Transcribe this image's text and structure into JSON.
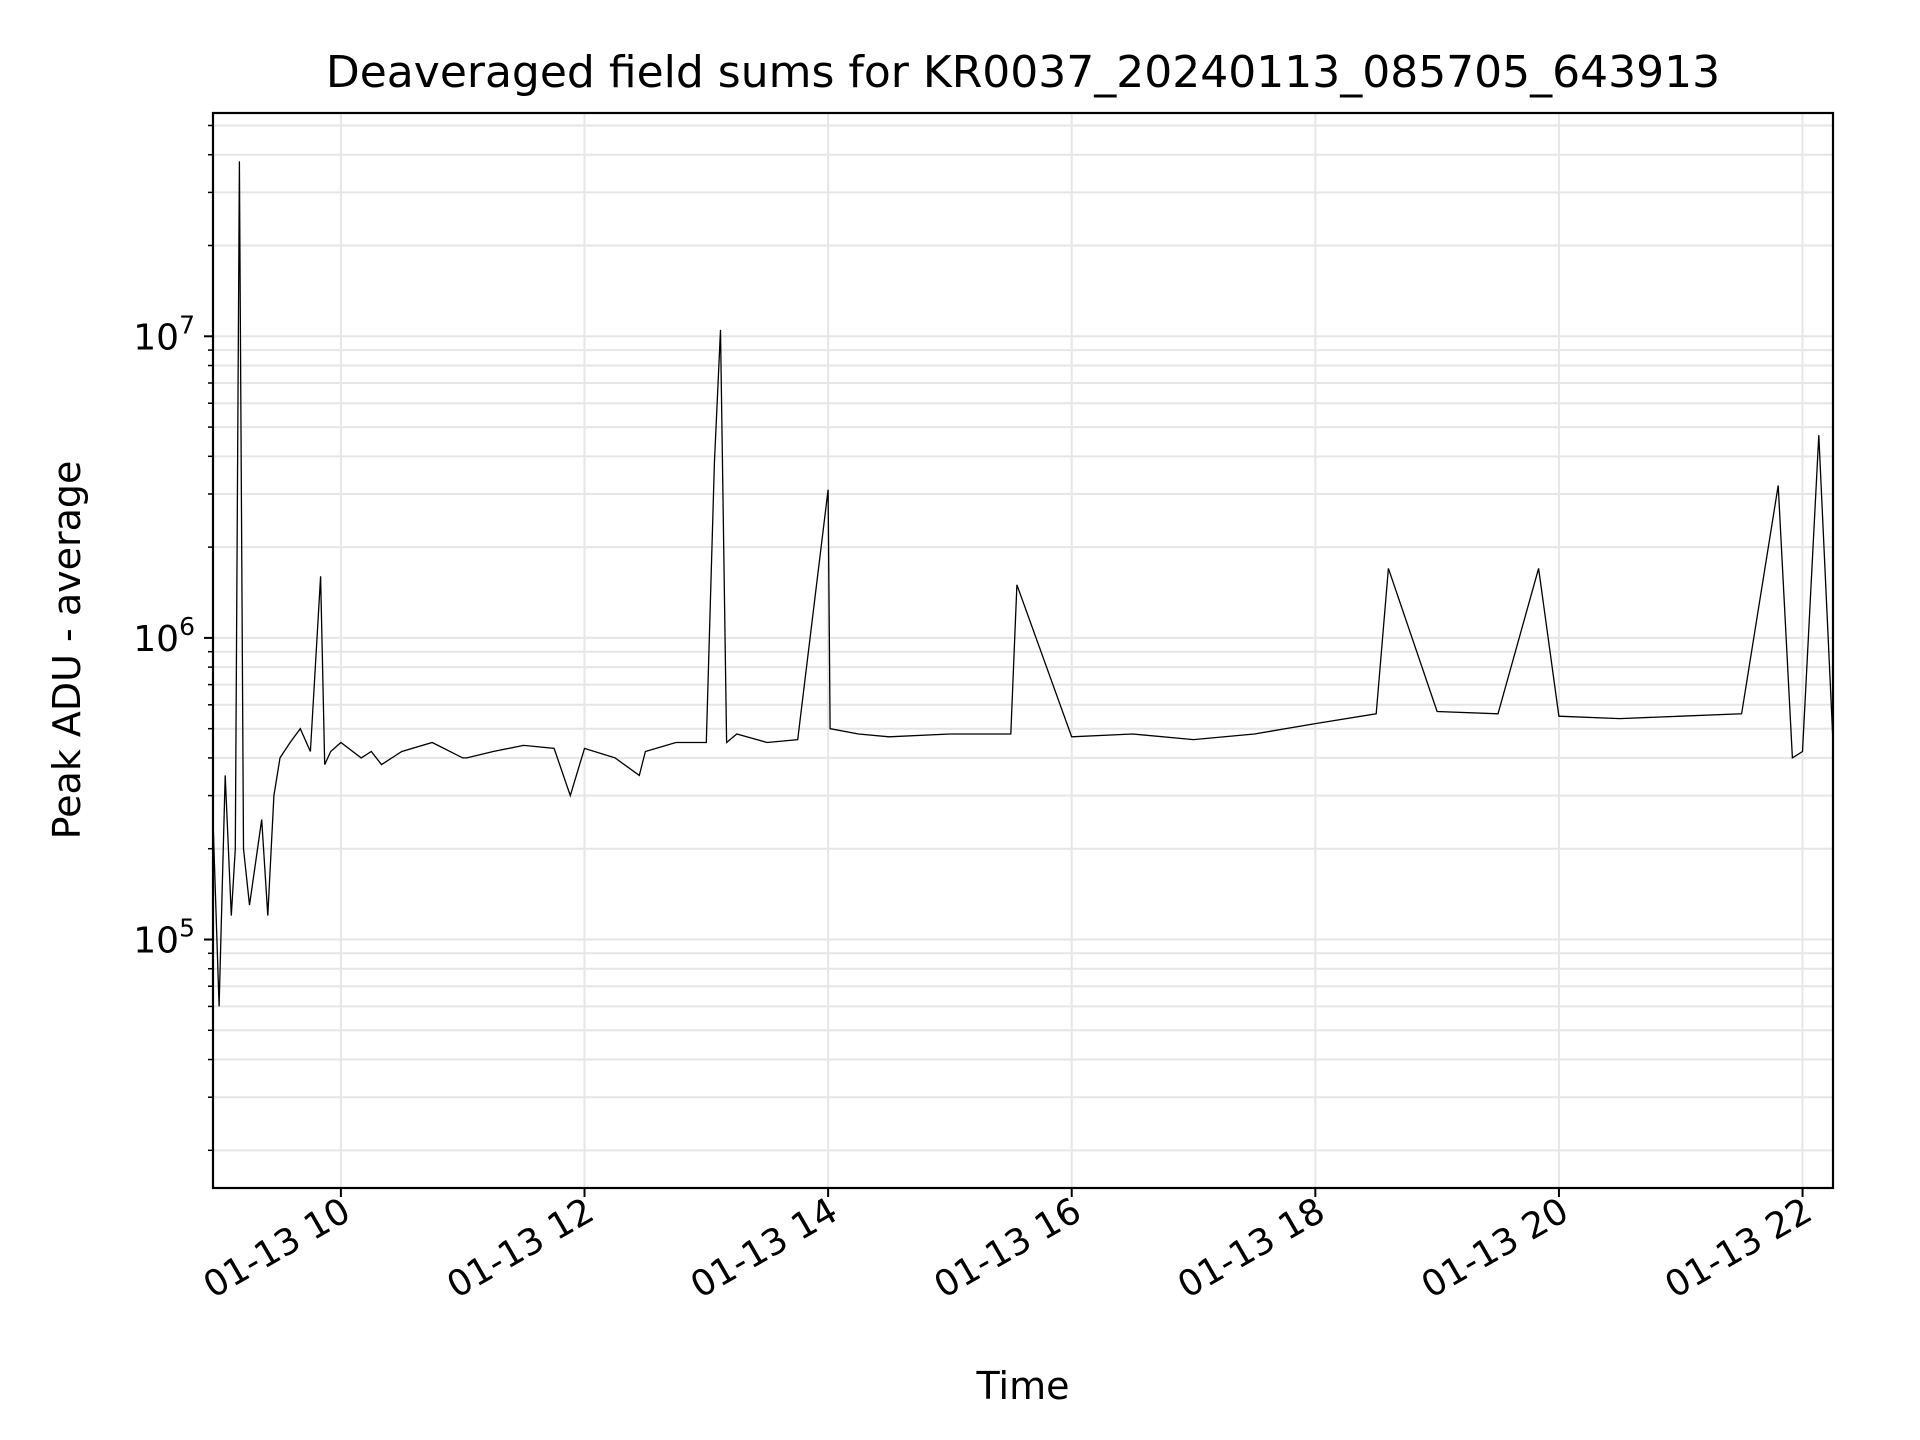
{
  "chart_data": {
    "type": "line",
    "title": "Deaveraged field sums for KR0037_20240113_085705_643913",
    "xlabel": "Time",
    "ylabel": "Peak ADU - average",
    "yscale": "log",
    "xlim": [
      "2024-01-13 08:57",
      "2024-01-13 22:15"
    ],
    "ylim": [
      15000,
      55000000
    ],
    "grid": true,
    "x_ticks": [
      {
        "label": "01-13 10",
        "time": "2024-01-13 10:00"
      },
      {
        "label": "01-13 12",
        "time": "2024-01-13 12:00"
      },
      {
        "label": "01-13 14",
        "time": "2024-01-13 14:00"
      },
      {
        "label": "01-13 16",
        "time": "2024-01-13 16:00"
      },
      {
        "label": "01-13 18",
        "time": "2024-01-13 18:00"
      },
      {
        "label": "01-13 20",
        "time": "2024-01-13 20:00"
      },
      {
        "label": "01-13 22",
        "time": "2024-01-13 22:00"
      }
    ],
    "y_ticks": [
      {
        "base": "10",
        "exp": "5",
        "value": 100000
      },
      {
        "base": "10",
        "exp": "6",
        "value": 1000000
      },
      {
        "base": "10",
        "exp": "7",
        "value": 10000000
      }
    ],
    "line_color": "#000000",
    "grid_color": "#e6e6e6",
    "series": [
      {
        "x": [
          "2024-01-13 08:57",
          "2024-01-13 09:00",
          "2024-01-13 09:03",
          "2024-01-13 09:06",
          "2024-01-13 09:08",
          "2024-01-13 09:10",
          "2024-01-13 09:12",
          "2024-01-13 09:15",
          "2024-01-13 09:18",
          "2024-01-13 09:21",
          "2024-01-13 09:24",
          "2024-01-13 09:27",
          "2024-01-13 09:30",
          "2024-01-13 09:35",
          "2024-01-13 09:40",
          "2024-01-13 09:45",
          "2024-01-13 09:50",
          "2024-01-13 09:52",
          "2024-01-13 09:55",
          "2024-01-13 10:00",
          "2024-01-13 10:10",
          "2024-01-13 10:15",
          "2024-01-13 10:20",
          "2024-01-13 10:30",
          "2024-01-13 10:45",
          "2024-01-13 11:00",
          "2024-01-13 11:02",
          "2024-01-13 11:15",
          "2024-01-13 11:30",
          "2024-01-13 11:45",
          "2024-01-13 11:53",
          "2024-01-13 12:00",
          "2024-01-13 12:15",
          "2024-01-13 12:27",
          "2024-01-13 12:30",
          "2024-01-13 12:45",
          "2024-01-13 13:00",
          "2024-01-13 13:04",
          "2024-01-13 13:07",
          "2024-01-13 13:10",
          "2024-01-13 13:15",
          "2024-01-13 13:30",
          "2024-01-13 13:45",
          "2024-01-13 14:00",
          "2024-01-13 14:01",
          "2024-01-13 14:15",
          "2024-01-13 14:30",
          "2024-01-13 15:00",
          "2024-01-13 15:30",
          "2024-01-13 15:33",
          "2024-01-13 16:00",
          "2024-01-13 16:30",
          "2024-01-13 17:00",
          "2024-01-13 17:30",
          "2024-01-13 18:00",
          "2024-01-13 18:30",
          "2024-01-13 18:36",
          "2024-01-13 19:00",
          "2024-01-13 19:30",
          "2024-01-13 19:50",
          "2024-01-13 20:00",
          "2024-01-13 20:30",
          "2024-01-13 21:00",
          "2024-01-13 21:30",
          "2024-01-13 21:48",
          "2024-01-13 21:55",
          "2024-01-13 22:00",
          "2024-01-13 22:08",
          "2024-01-13 22:15"
        ],
        "y": [
          250000,
          60000,
          350000,
          120000,
          200000,
          38000000,
          200000,
          130000,
          180000,
          250000,
          120000,
          300000,
          400000,
          450000,
          500000,
          420000,
          1600000,
          380000,
          420000,
          450000,
          400000,
          420000,
          380000,
          420000,
          450000,
          400000,
          400000,
          420000,
          440000,
          430000,
          300000,
          430000,
          400000,
          350000,
          420000,
          450000,
          450000,
          3800000,
          10500000,
          450000,
          480000,
          450000,
          460000,
          3100000,
          500000,
          480000,
          470000,
          480000,
          480000,
          1500000,
          470000,
          480000,
          460000,
          480000,
          520000,
          560000,
          1700000,
          570000,
          560000,
          1700000,
          550000,
          540000,
          550000,
          560000,
          3200000,
          400000,
          420000,
          4700000,
          450000
        ]
      }
    ]
  }
}
